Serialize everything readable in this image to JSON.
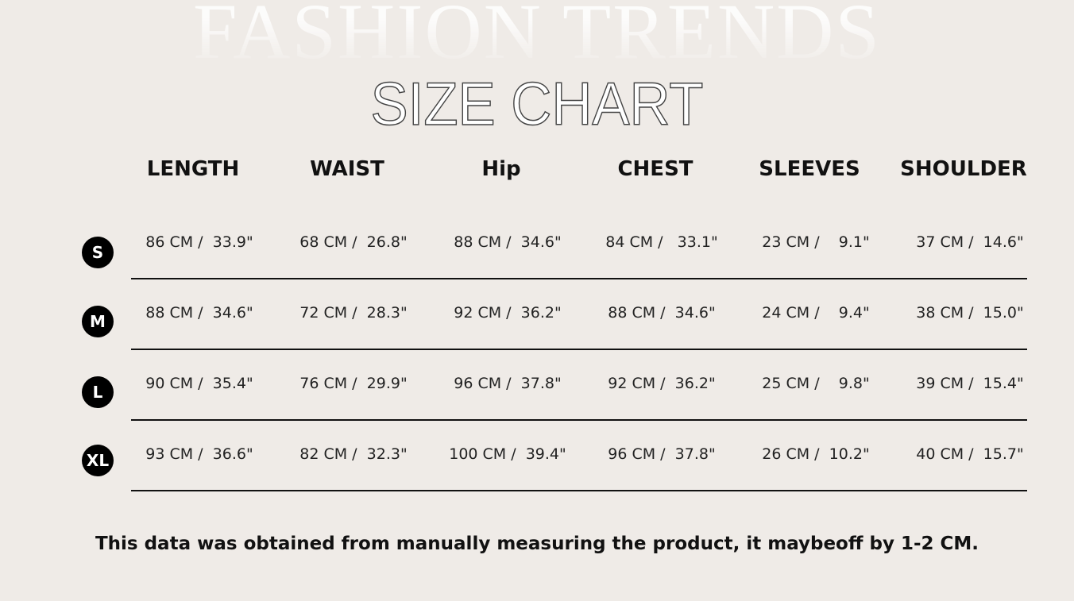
{
  "background_title": "FASHION TRENDS",
  "title": "SIZE CHART",
  "headers": [
    "LENGTH",
    "WAIST",
    "Hip",
    "CHEST",
    "SLEEVES",
    "SHOULDER"
  ],
  "rows": [
    {
      "size": "S",
      "cells": [
        "86 CM /  33.9\"",
        "68 CM /  26.8\"",
        "88 CM /  34.6\"",
        "84 CM /   33.1\"",
        "23 CM /    9.1\"",
        "37 CM /  14.6\""
      ]
    },
    {
      "size": "M",
      "cells": [
        "88 CM /  34.6\"",
        "72 CM /  28.3\"",
        "92 CM /  36.2\"",
        "88 CM /  34.6\"",
        "24 CM /    9.4\"",
        "38 CM /  15.0\""
      ]
    },
    {
      "size": "L",
      "cells": [
        "90 CM /  35.4\"",
        "76 CM /  29.9\"",
        "96 CM /  37.8\"",
        "92 CM /  36.2\"",
        "25 CM /    9.8\"",
        "39 CM /  15.4\""
      ]
    },
    {
      "size": "XL",
      "cells": [
        "93 CM /  36.6\"",
        "82 CM /  32.3\"",
        "100 CM /  39.4\"",
        "96 CM /  37.8\"",
        "26 CM /  10.2\"",
        "40 CM /  15.7\""
      ]
    }
  ],
  "note": "This data was obtained from manually measuring the product, it maybeoff by 1-2 CM."
}
